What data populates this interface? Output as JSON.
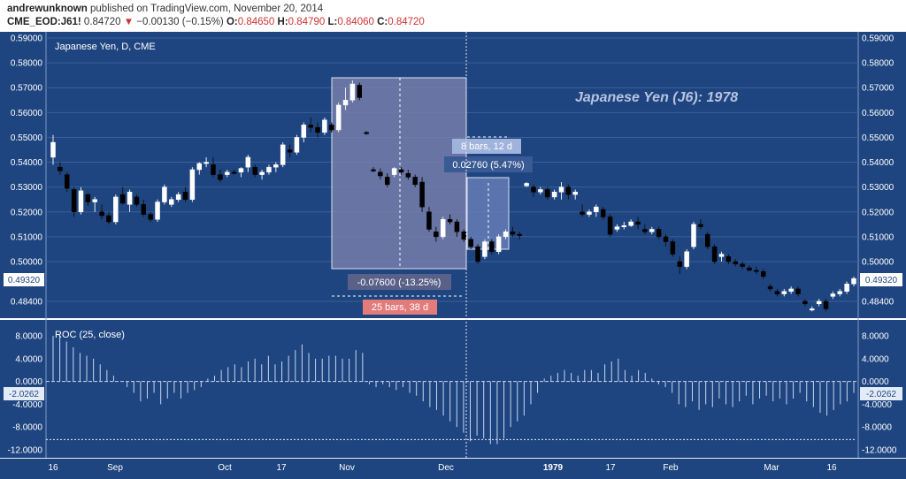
{
  "header": {
    "author": "andrewunknown",
    "published_text": "published on TradingView.com, November 20, 2014",
    "symbol": "CME_EOD:J61!",
    "last": "0.84720",
    "change_arrow": "▼",
    "change": "−0.00130 (−0.15%)",
    "o_label": "O:",
    "o_value": "0.84650",
    "h_label": "H:",
    "h_value": "0.84790",
    "l_label": "L:",
    "l_value": "0.84060",
    "c_label": "C:",
    "c_value": "0.84720"
  },
  "colors": {
    "background": "#1f4580",
    "price_grid": "#3a5f98",
    "up_candle": "#ffffff",
    "down_candle": "#000000",
    "roc_line": "#c8d6ef",
    "measure_fill": "#7a80ab",
    "accent_red": "#e37b7b"
  },
  "main": {
    "instrument_label": "Japanese Yen, D, CME",
    "annotation": "Japanese Yen (J6): 1978",
    "price_badge": "0.49320",
    "measure1": {
      "change": "-0.07600 (-13.25%)",
      "bars": "25 bars, 38 d"
    },
    "measure2": {
      "change": "0.02760 (5.47%)",
      "bars": "8 bars, 12 d"
    }
  },
  "roc": {
    "label": "ROC (25, close)",
    "value_badge": "-2.0262"
  },
  "chart_data": [
    {
      "type": "candlestick",
      "title": "Japanese Yen, D, CME",
      "yticks": [
        "0.59000",
        "0.58000",
        "0.57000",
        "0.56000",
        "0.55000",
        "0.54000",
        "0.53000",
        "0.52000",
        "0.51000",
        "0.50000",
        "0.48400"
      ],
      "ylim": [
        0.48,
        0.591
      ],
      "xticks": [
        "16",
        "Sep",
        "Oct",
        "17",
        "Nov",
        "Dec",
        "1979",
        "17",
        "Feb",
        "Mar",
        "16"
      ],
      "ohlc": [
        [
          0.542,
          0.551,
          0.539,
          0.548
        ],
        [
          0.538,
          0.54,
          0.535,
          0.5365
        ],
        [
          0.535,
          0.536,
          0.528,
          0.5295
        ],
        [
          0.529,
          0.53,
          0.518,
          0.52
        ],
        [
          0.52,
          0.53,
          0.519,
          0.5285
        ],
        [
          0.527,
          0.5275,
          0.5225,
          0.524
        ],
        [
          0.524,
          0.526,
          0.52,
          0.525
        ],
        [
          0.52,
          0.523,
          0.517,
          0.5185
        ],
        [
          0.5185,
          0.52,
          0.515,
          0.516
        ],
        [
          0.516,
          0.527,
          0.515,
          0.526
        ],
        [
          0.527,
          0.53,
          0.523,
          0.5235
        ],
        [
          0.523,
          0.529,
          0.52,
          0.528
        ],
        [
          0.526,
          0.527,
          0.522,
          0.523
        ],
        [
          0.523,
          0.525,
          0.518,
          0.519
        ],
        [
          0.519,
          0.52,
          0.516,
          0.517
        ],
        [
          0.517,
          0.525,
          0.516,
          0.524
        ],
        [
          0.524,
          0.531,
          0.523,
          0.53
        ],
        [
          0.523,
          0.526,
          0.522,
          0.525
        ],
        [
          0.525,
          0.528,
          0.524,
          0.527
        ],
        [
          0.528,
          0.53,
          0.524,
          0.525
        ],
        [
          0.525,
          0.538,
          0.524,
          0.537
        ],
        [
          0.537,
          0.54,
          0.535,
          0.5395
        ],
        [
          0.5395,
          0.542,
          0.538,
          0.54
        ],
        [
          0.539,
          0.542,
          0.534,
          0.535
        ],
        [
          0.535,
          0.537,
          0.532,
          0.533
        ],
        [
          0.535,
          0.537,
          0.534,
          0.536
        ],
        [
          0.536,
          0.537,
          0.535,
          0.5355
        ],
        [
          0.536,
          0.538,
          0.534,
          0.5375
        ],
        [
          0.538,
          0.543,
          0.536,
          0.542
        ],
        [
          0.538,
          0.539,
          0.534,
          0.535
        ],
        [
          0.535,
          0.537,
          0.533,
          0.536
        ],
        [
          0.536,
          0.539,
          0.535,
          0.538
        ],
        [
          0.538,
          0.54,
          0.536,
          0.539
        ],
        [
          0.539,
          0.548,
          0.538,
          0.547
        ],
        [
          0.545,
          0.547,
          0.542,
          0.544
        ],
        [
          0.544,
          0.551,
          0.543,
          0.55
        ],
        [
          0.55,
          0.556,
          0.548,
          0.555
        ],
        [
          0.555,
          0.558,
          0.552,
          0.554
        ],
        [
          0.554,
          0.556,
          0.55,
          0.552
        ],
        [
          0.552,
          0.558,
          0.551,
          0.557
        ],
        [
          0.555,
          0.556,
          0.552,
          0.553
        ],
        [
          0.553,
          0.564,
          0.552,
          0.563
        ],
        [
          0.563,
          0.57,
          0.561,
          0.565
        ],
        [
          0.565,
          0.573,
          0.564,
          0.5715
        ],
        [
          0.571,
          0.572,
          0.565,
          0.566
        ],
        [
          0.552,
          0.5525,
          0.551,
          0.5515
        ],
        [
          0.537,
          0.538,
          0.536,
          0.5365
        ],
        [
          0.536,
          0.5375,
          0.533,
          0.5345
        ],
        [
          0.534,
          0.5355,
          0.53,
          0.531
        ],
        [
          0.535,
          0.538,
          0.534,
          0.5375
        ],
        [
          0.537,
          0.538,
          0.535,
          0.536
        ],
        [
          0.5355,
          0.537,
          0.533,
          0.534
        ],
        [
          0.534,
          0.535,
          0.53,
          0.531
        ],
        [
          0.532,
          0.534,
          0.52,
          0.522
        ],
        [
          0.52,
          0.522,
          0.512,
          0.513
        ],
        [
          0.512,
          0.514,
          0.508,
          0.51
        ],
        [
          0.51,
          0.518,
          0.509,
          0.517
        ],
        [
          0.517,
          0.519,
          0.515,
          0.516
        ],
        [
          0.516,
          0.517,
          0.51,
          0.512
        ],
        [
          0.512,
          0.513,
          0.508,
          0.509
        ],
        [
          0.509,
          0.51,
          0.505,
          0.506
        ],
        [
          0.506,
          0.507,
          0.499,
          0.5
        ],
        [
          0.502,
          0.509,
          0.501,
          0.508
        ],
        [
          0.508,
          0.509,
          0.503,
          0.504
        ],
        [
          0.504,
          0.511,
          0.503,
          0.51
        ],
        [
          0.51,
          0.513,
          0.509,
          0.512
        ],
        [
          0.512,
          0.514,
          0.51,
          0.511
        ],
        [
          0.511,
          0.512,
          0.509,
          0.5105
        ],
        [
          0.5305,
          0.532,
          0.53,
          0.5315
        ],
        [
          0.53,
          0.531,
          0.526,
          0.528
        ],
        [
          0.528,
          0.53,
          0.527,
          0.529
        ],
        [
          0.529,
          0.53,
          0.525,
          0.526
        ],
        [
          0.526,
          0.529,
          0.525,
          0.528
        ],
        [
          0.528,
          0.532,
          0.525,
          0.53
        ],
        [
          0.53,
          0.531,
          0.525,
          0.527
        ],
        [
          0.527,
          0.529,
          0.525,
          0.528
        ],
        [
          0.52,
          0.523,
          0.518,
          0.519
        ],
        [
          0.519,
          0.521,
          0.518,
          0.52
        ],
        [
          0.52,
          0.523,
          0.518,
          0.522
        ],
        [
          0.521,
          0.522,
          0.517,
          0.518
        ],
        [
          0.518,
          0.519,
          0.51,
          0.511
        ],
        [
          0.513,
          0.515,
          0.512,
          0.514
        ],
        [
          0.514,
          0.516,
          0.513,
          0.5145
        ],
        [
          0.5145,
          0.517,
          0.514,
          0.516
        ],
        [
          0.516,
          0.518,
          0.513,
          0.515
        ],
        [
          0.513,
          0.515,
          0.511,
          0.512
        ],
        [
          0.512,
          0.514,
          0.511,
          0.513
        ],
        [
          0.513,
          0.514,
          0.509,
          0.51
        ],
        [
          0.51,
          0.511,
          0.506,
          0.508
        ],
        [
          0.508,
          0.509,
          0.502,
          0.503
        ],
        [
          0.5,
          0.502,
          0.495,
          0.498
        ],
        [
          0.498,
          0.505,
          0.497,
          0.504
        ],
        [
          0.506,
          0.516,
          0.505,
          0.515
        ],
        [
          0.515,
          0.517,
          0.513,
          0.514
        ],
        [
          0.511,
          0.512,
          0.505,
          0.506
        ],
        [
          0.506,
          0.507,
          0.499,
          0.5
        ],
        [
          0.502,
          0.504,
          0.5,
          0.503
        ],
        [
          0.502,
          0.503,
          0.499,
          0.5
        ],
        [
          0.5,
          0.501,
          0.498,
          0.499
        ],
        [
          0.499,
          0.5,
          0.497,
          0.498
        ],
        [
          0.4975,
          0.4985,
          0.496,
          0.4965
        ],
        [
          0.4965,
          0.498,
          0.495,
          0.496
        ],
        [
          0.496,
          0.497,
          0.493,
          0.494
        ],
        [
          0.49,
          0.491,
          0.488,
          0.489
        ],
        [
          0.488,
          0.489,
          0.486,
          0.487
        ],
        [
          0.487,
          0.489,
          0.486,
          0.488
        ],
        [
          0.488,
          0.49,
          0.487,
          0.489
        ],
        [
          0.489,
          0.49,
          0.486,
          0.487
        ],
        [
          0.484,
          0.485,
          0.482,
          0.483
        ],
        [
          0.481,
          0.482,
          0.48,
          0.481
        ],
        [
          0.483,
          0.485,
          0.482,
          0.484
        ],
        [
          0.484,
          0.485,
          0.48,
          0.481
        ],
        [
          0.486,
          0.488,
          0.485,
          0.487
        ],
        [
          0.487,
          0.489,
          0.486,
          0.488
        ],
        [
          0.488,
          0.492,
          0.487,
          0.491
        ],
        [
          0.491,
          0.494,
          0.49,
          0.4932
        ]
      ]
    },
    {
      "type": "bar",
      "title": "ROC (25, close)",
      "yticks": [
        "8.0000",
        "4.0000",
        "0.0000",
        "-4.0000",
        "-8.0000",
        "-12.0000"
      ],
      "ylim": [
        -14,
        10.5
      ],
      "values": [
        8.0,
        8.0,
        7.0,
        6.0,
        5.0,
        4.5,
        4.0,
        3.0,
        2.0,
        1.0,
        0.0,
        -1.0,
        -2.0,
        -3.5,
        -3.0,
        -2.0,
        -4.0,
        -3.0,
        -2.0,
        -3.0,
        -2.0,
        -1.5,
        -1.0,
        0.5,
        1.0,
        2.0,
        2.5,
        3.0,
        2.5,
        3.5,
        4.0,
        3.0,
        4.5,
        3.0,
        3.5,
        4.5,
        5.5,
        6.5,
        5.0,
        4.0,
        4.0,
        4.5,
        4.5,
        4.0,
        4.0,
        5.5,
        5.0,
        -0.5,
        -1.0,
        -0.5,
        -1.0,
        -1.5,
        -1.0,
        -2.0,
        -2.5,
        -3.5,
        -4.5,
        -5.0,
        -6.0,
        -7.0,
        -8.0,
        -9.0,
        -10.5,
        -9.5,
        -10.0,
        -11.0,
        -11.0,
        -10.0,
        -8.0,
        -7.0,
        -6.0,
        -4.0,
        -2.0,
        0.5,
        1.0,
        1.5,
        2.0,
        1.5,
        1.0,
        2.0,
        2.0,
        1.5,
        3.0,
        3.5,
        4.0,
        2.0,
        1.0,
        2.0,
        1.5,
        0.5,
        -0.5,
        -1.0,
        -2.0,
        -4.0,
        -4.5,
        -3.5,
        -5.0,
        -4.0,
        -4.5,
        -3.0,
        -4.0,
        -4.5,
        -3.5,
        -2.5,
        -4.0,
        -3.0,
        -2.5,
        -3.5,
        -3.0,
        -4.0,
        -3.0,
        -2.0,
        -3.5,
        -4.5,
        -5.5,
        -6.0,
        -5.0,
        -4.0,
        -3.5,
        -2.0263
      ],
      "hline": -10.2
    }
  ]
}
